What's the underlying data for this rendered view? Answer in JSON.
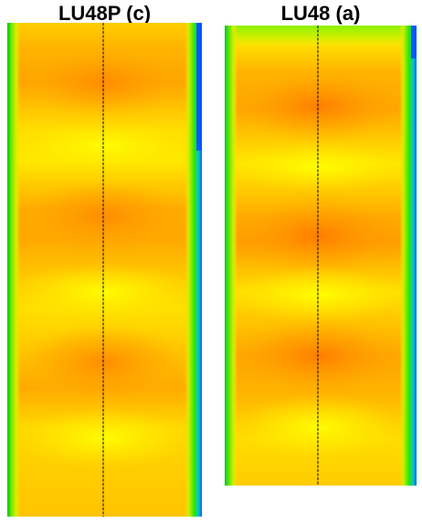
{
  "panels": [
    {
      "title": "LU48P (c)",
      "colormap": [
        "#0000ff",
        "#00aaff",
        "#00ff00",
        "#aaff00",
        "#ffff00",
        "#ffd200",
        "#ffa000",
        "#ff6400",
        "#ff0000"
      ]
    },
    {
      "title": "LU48 (a)",
      "colormap": [
        "#0000ff",
        "#00aaff",
        "#00ff00",
        "#aaff00",
        "#ffff00",
        "#ffd200",
        "#ffa000",
        "#ff6400",
        "#ff0000"
      ]
    }
  ]
}
